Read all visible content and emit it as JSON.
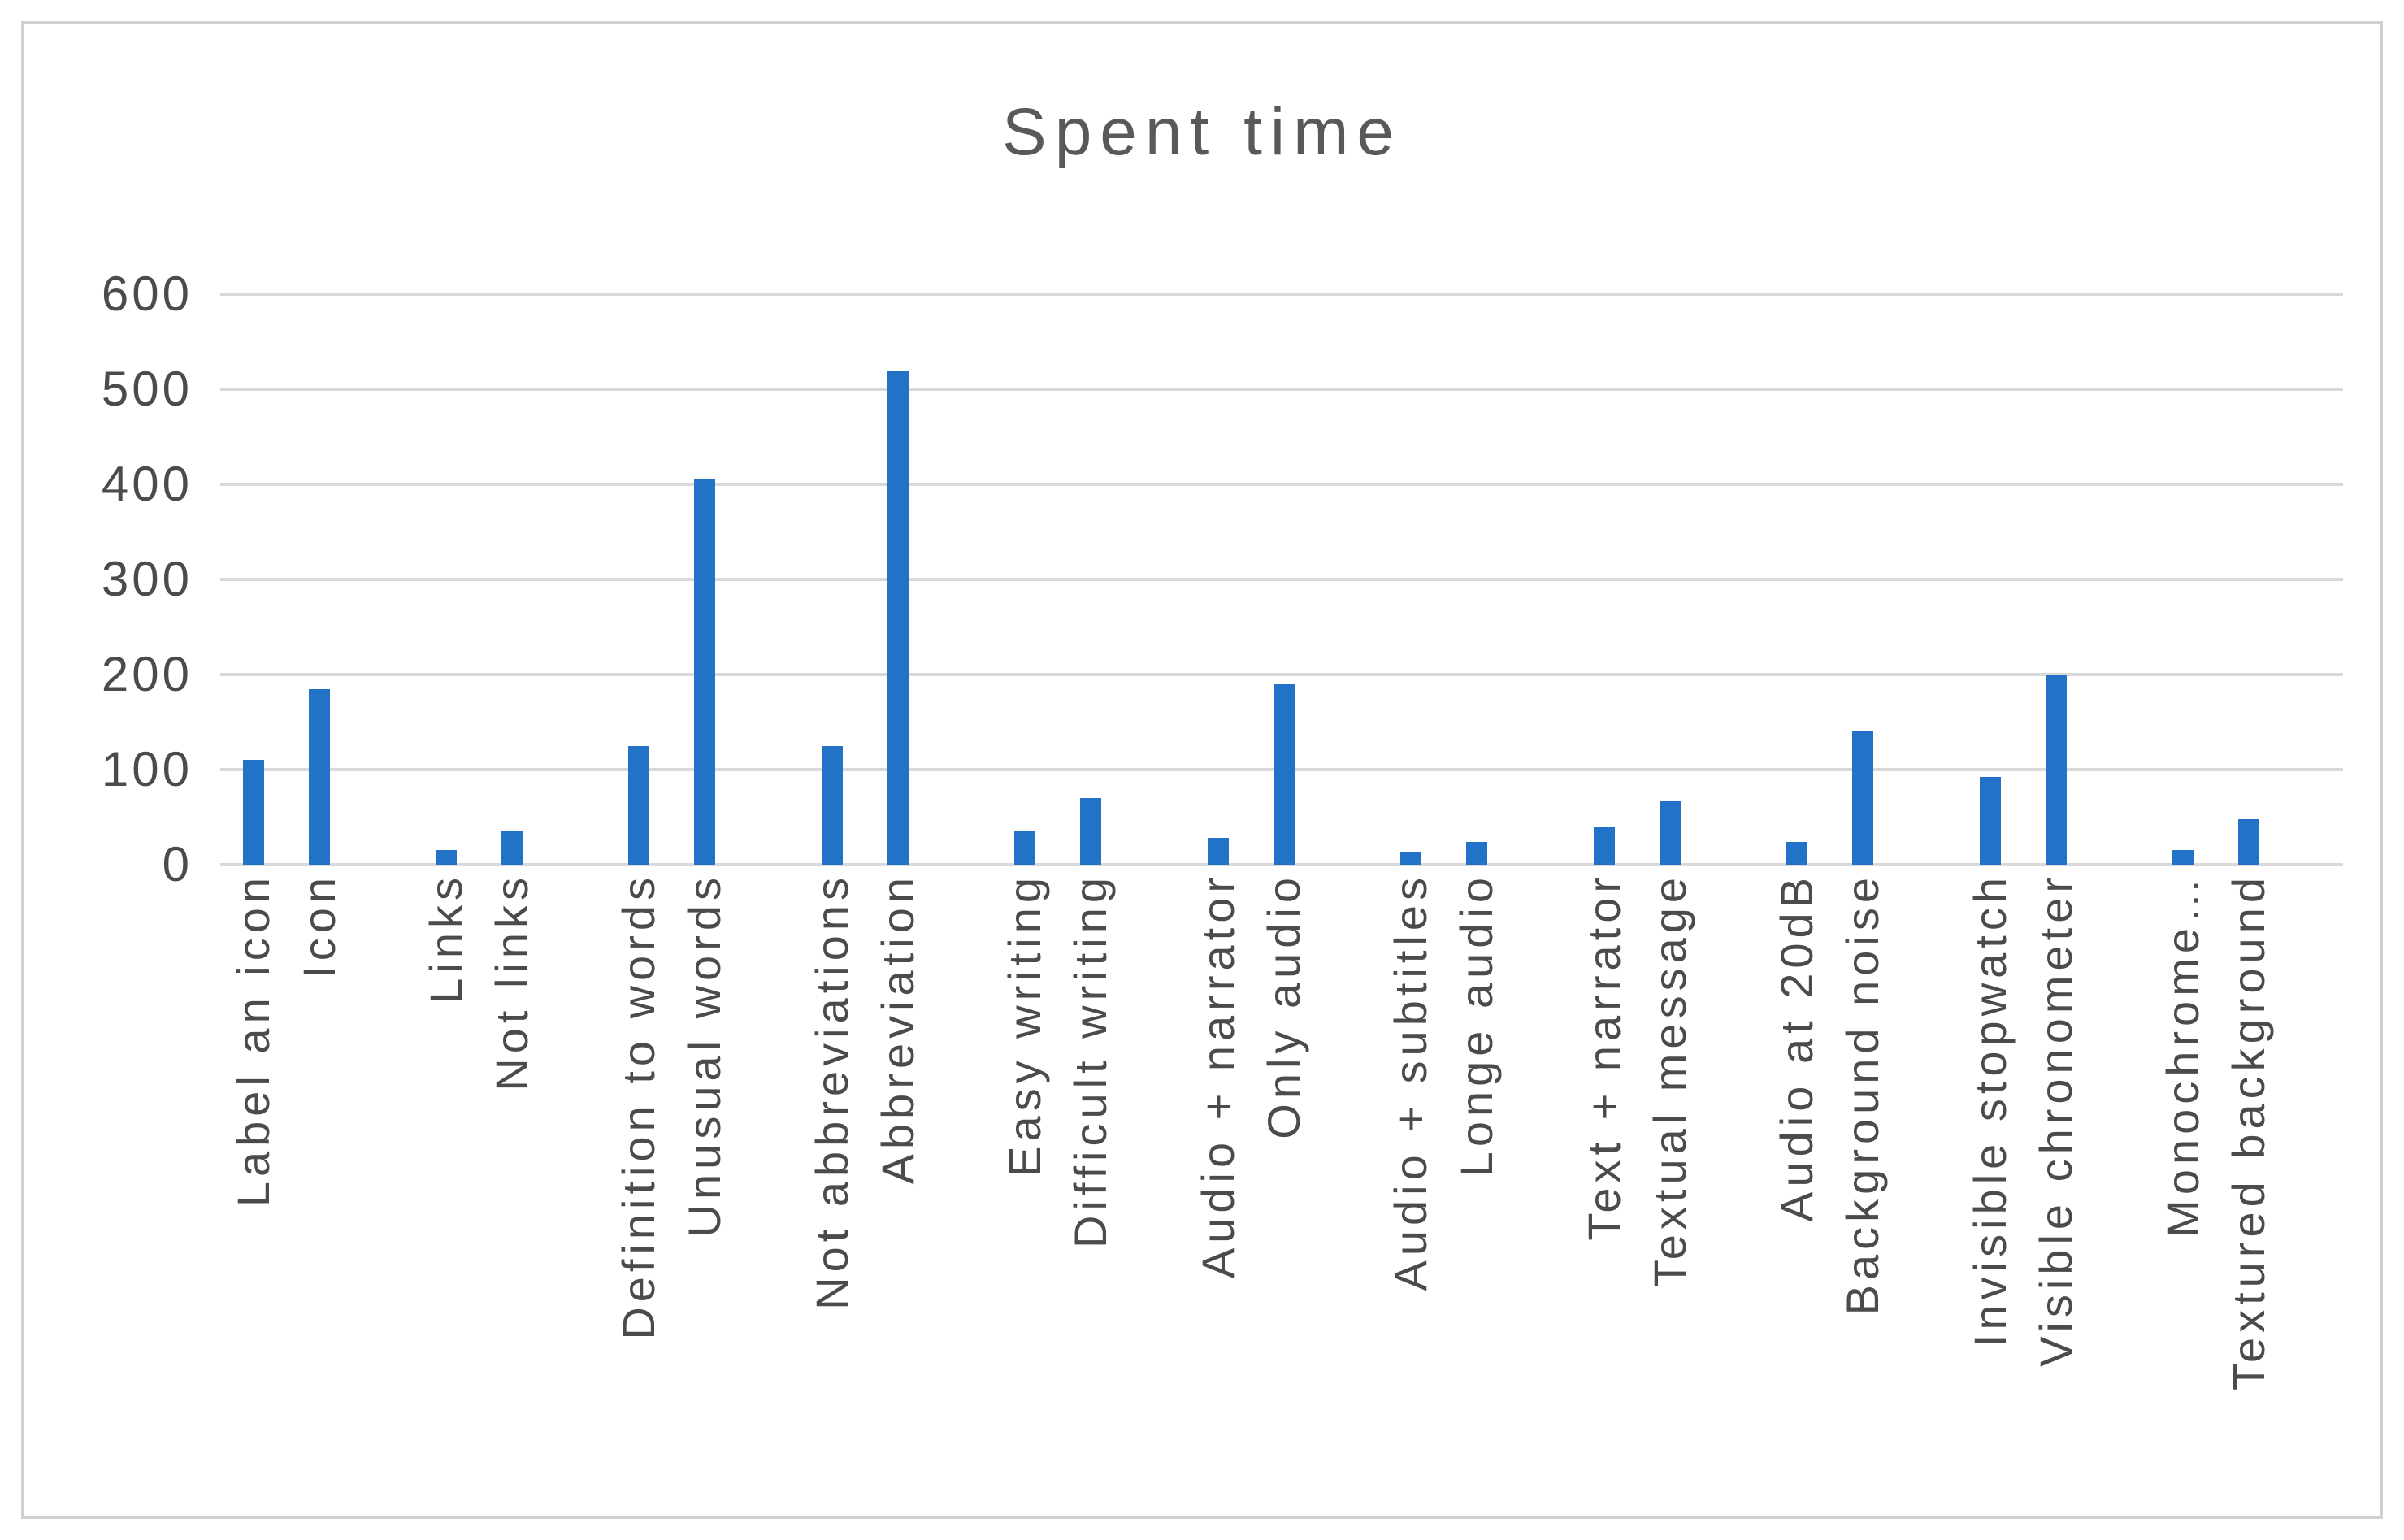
{
  "chart_data": {
    "type": "bar",
    "title": "Spent time",
    "categories": [
      "Label an icon",
      "Icon",
      "Links",
      "Not links",
      "Definition to words",
      "Unusual words",
      "Not abbreviations",
      "Abbreviation",
      "Easy writing",
      "Difficult writing",
      "Audio + narrator",
      "Only audio",
      "Audio + subtitles",
      "Longe audio",
      "Text + narrator",
      "Textual message",
      "Audio at 20dB",
      "Background noise",
      "Invisible stopwatch",
      "Visible chronometer",
      "Monochrome…",
      "Textured background"
    ],
    "values": [
      110,
      185,
      15,
      35,
      125,
      405,
      125,
      520,
      35,
      70,
      28,
      190,
      14,
      24,
      39,
      67,
      24,
      140,
      92,
      200,
      15,
      48
    ],
    "pair_grouping": 2,
    "xlabel": "",
    "ylabel": "",
    "ylim": [
      0,
      600
    ],
    "yticks": [
      600,
      500,
      400,
      300,
      200,
      100,
      0
    ],
    "grid": true,
    "legend": false,
    "x_label_rotation_degrees": 90,
    "colors": {
      "bar": "#2272c8",
      "gridline": "#d9d9d9",
      "title_text": "#595959",
      "axis_text": "#4b4b4b",
      "chart_border": "#cfcfcf"
    }
  }
}
